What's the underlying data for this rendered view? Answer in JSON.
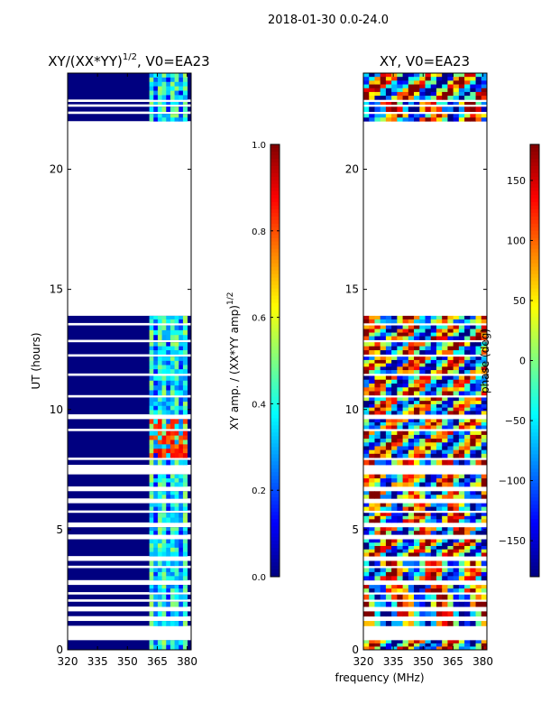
{
  "chart_data": {
    "suptitle": "2018-01-30 0.0-24.0",
    "xlabel_shared": "frequency (MHz)",
    "panels": [
      {
        "type": "heatmap",
        "title_base": "XY/(XX*YY)",
        "title_sup": "1/2",
        "title_suffix": ", V0=EA23",
        "xlim": [
          320,
          382
        ],
        "ylim": [
          0,
          24
        ],
        "xticks": [
          320,
          335,
          350,
          365,
          380
        ],
        "yticks": [
          0,
          5,
          10,
          15,
          20
        ],
        "ylabel": "UT (hours)",
        "colormap": "jet",
        "colorbar": {
          "vmin": 0.0,
          "vmax": 1.0,
          "ticks": [
            "0.0",
            "0.2",
            "0.4",
            "0.6",
            "0.8",
            "1.0"
          ],
          "label_base": "XY amp. / (XX*YY amp)",
          "label_sup": "1/2"
        },
        "data_rows_ut": [
          [
            0.0,
            0.4
          ],
          [
            1.0,
            1.2
          ],
          [
            1.4,
            1.6
          ],
          [
            1.8,
            2.0
          ],
          [
            2.1,
            2.3
          ],
          [
            2.4,
            2.7
          ],
          [
            2.9,
            3.4
          ],
          [
            3.5,
            3.7
          ],
          [
            3.9,
            4.6
          ],
          [
            4.8,
            5.1
          ],
          [
            5.3,
            5.7
          ],
          [
            5.8,
            6.1
          ],
          [
            6.3,
            6.6
          ],
          [
            6.8,
            7.3
          ],
          [
            7.7,
            7.9
          ],
          [
            8.0,
            9.1
          ],
          [
            9.2,
            9.6
          ],
          [
            9.8,
            10.5
          ],
          [
            10.6,
            11.4
          ],
          [
            11.5,
            12.2
          ],
          [
            12.3,
            12.8
          ],
          [
            12.9,
            13.5
          ],
          [
            13.6,
            13.9
          ],
          [
            22.0,
            22.3
          ],
          [
            22.4,
            22.6
          ],
          [
            22.7,
            22.8
          ],
          [
            22.9,
            24.0
          ]
        ],
        "signal_band_mhz": [
          361,
          380
        ],
        "background_value": 0.0,
        "band_value_range": [
          0.25,
          0.55
        ],
        "hot_region": {
          "ut": [
            8.0,
            9.6
          ],
          "mhz": [
            361,
            380
          ],
          "value": 0.9
        }
      },
      {
        "type": "heatmap",
        "title_base": "XY, V0=EA23",
        "xlim": [
          320,
          382
        ],
        "ylim": [
          0,
          24
        ],
        "xticks": [
          320,
          335,
          350,
          365,
          380
        ],
        "yticks": [
          0,
          5,
          10,
          15,
          20
        ],
        "colormap": "jet",
        "colorbar": {
          "vmin": -180,
          "vmax": 180,
          "ticks": [
            "150",
            "100",
            "50",
            "0",
            "−50",
            "−100",
            "−150"
          ],
          "tick_values": [
            150,
            100,
            50,
            0,
            -50,
            -100,
            -150
          ],
          "label": "phase (deg)"
        },
        "data_rows_ut": [
          [
            0.0,
            0.4
          ],
          [
            1.0,
            1.2
          ],
          [
            1.4,
            1.6
          ],
          [
            1.8,
            2.0
          ],
          [
            2.1,
            2.3
          ],
          [
            2.4,
            2.7
          ],
          [
            2.9,
            3.4
          ],
          [
            3.5,
            3.7
          ],
          [
            3.9,
            4.6
          ],
          [
            4.8,
            5.1
          ],
          [
            5.3,
            5.7
          ],
          [
            5.8,
            6.1
          ],
          [
            6.3,
            6.6
          ],
          [
            6.8,
            7.3
          ],
          [
            7.7,
            7.9
          ],
          [
            8.0,
            9.1
          ],
          [
            9.2,
            9.6
          ],
          [
            9.8,
            10.5
          ],
          [
            10.6,
            11.4
          ],
          [
            11.5,
            12.2
          ],
          [
            12.3,
            12.8
          ],
          [
            12.9,
            13.5
          ],
          [
            13.6,
            13.9
          ],
          [
            22.0,
            22.3
          ],
          [
            22.4,
            22.6
          ],
          [
            22.7,
            22.8
          ],
          [
            22.9,
            24.0
          ]
        ],
        "phase_range_deg": [
          -180,
          180
        ]
      }
    ]
  }
}
